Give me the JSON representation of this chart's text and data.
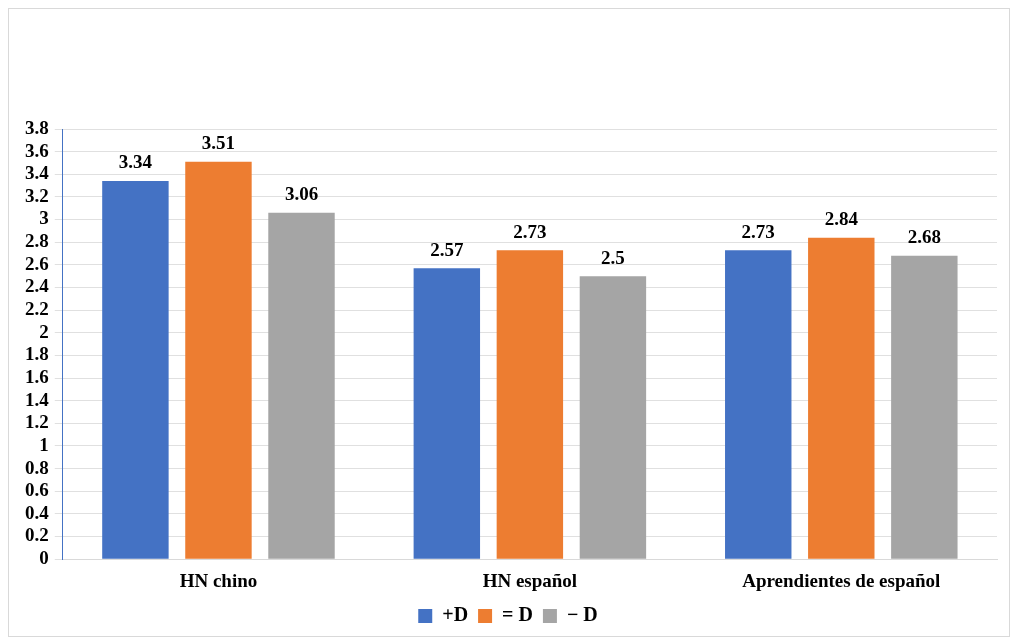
{
  "chart_data": {
    "type": "bar",
    "categories": [
      "HN chino",
      "HN español",
      "Aprendientes de español"
    ],
    "series": [
      {
        "name": "+D",
        "color": "#4472c4",
        "values": [
          3.34,
          2.57,
          2.73
        ]
      },
      {
        "name": "= D",
        "color": "#ed7d31",
        "values": [
          3.51,
          2.73,
          2.84
        ]
      },
      {
        "name": "− D",
        "color": "#a5a5a5",
        "values": [
          3.06,
          2.5,
          2.68
        ]
      }
    ],
    "ylim": [
      0,
      3.8
    ],
    "yticks": [
      0,
      0.2,
      0.4,
      0.6,
      0.8,
      1,
      1.2,
      1.4,
      1.6,
      1.8,
      2,
      2.2,
      2.4,
      2.6,
      2.8,
      3,
      3.2,
      3.4,
      3.6,
      3.8
    ],
    "grid": "y",
    "legend": "bottom",
    "data_labels": true
  }
}
